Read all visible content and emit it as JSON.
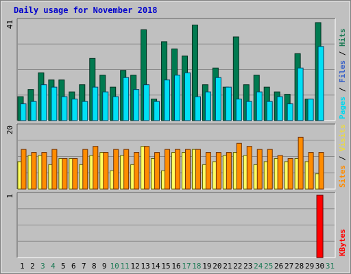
{
  "chart_data": {
    "type": "bar",
    "title": "Daily usage for November 2018",
    "categories": [
      "1",
      "2",
      "3",
      "4",
      "5",
      "6",
      "7",
      "8",
      "9",
      "10",
      "11",
      "12",
      "13",
      "14",
      "15",
      "16",
      "17",
      "18",
      "19",
      "20",
      "21",
      "22",
      "23",
      "24",
      "25",
      "26",
      "27",
      "28",
      "29",
      "30",
      "31"
    ],
    "weekend_days": [
      "3",
      "4",
      "10",
      "11",
      "17",
      "18",
      "24",
      "25",
      "31"
    ],
    "panels": [
      {
        "id": "hits",
        "ymax_label": "41",
        "ymax": 41,
        "side_label": [
          "Pages",
          "Files",
          "Hits"
        ],
        "side_label_colors": [
          "#00d8ef",
          "#3a62c7",
          "#1c7a55"
        ],
        "series": [
          {
            "name": "Hits",
            "color": "#007a50",
            "values": [
              10,
              13,
              20,
              17,
              17,
              12,
              15,
              26,
              19,
              14,
              21,
              19,
              38,
              9,
              33,
              30,
              27,
              40,
              15,
              22,
              14,
              35,
              15,
              19,
              14,
              12,
              11,
              28,
              9,
              41
            ]
          },
          {
            "name": "Files",
            "color": "#2f5fd0",
            "values": [
              7,
              8,
              15,
              14,
              10,
              9,
              8,
              14,
              12,
              10,
              18,
              13,
              15,
              8,
              17,
              19,
              20,
              10,
              12,
              18,
              14,
              9,
              8,
              12,
              8,
              10,
              7,
              22,
              9,
              31
            ]
          },
          {
            "name": "Pages",
            "color": "#00e0f5",
            "values": [
              7,
              8,
              15,
              14,
              10,
              9,
              8,
              14,
              12,
              10,
              18,
              13,
              15,
              8,
              17,
              19,
              20,
              10,
              12,
              18,
              14,
              9,
              8,
              12,
              8,
              10,
              7,
              22,
              9,
              31
            ]
          }
        ]
      },
      {
        "id": "visits",
        "ymax_label": "20",
        "ymax": 20,
        "side_label": [
          "Sites",
          "Visits"
        ],
        "side_label_colors": [
          "#ff8c00",
          "#e8d84a"
        ],
        "series": [
          {
            "name": "Visits",
            "color": "#ffff60",
            "values": [
              9,
              11,
              11,
              8,
              10,
              10,
              8,
              11,
              12,
              6,
              11,
              8,
              14,
              10,
              6,
              12,
              12,
              13,
              8,
              9,
              11,
              12,
              11,
              8,
              9,
              10,
              9,
              10,
              9,
              5
            ]
          },
          {
            "name": "Sites",
            "color": "#ff8c00",
            "values": [
              13,
              12,
              12,
              13,
              10,
              10,
              13,
              14,
              12,
              13,
              13,
              12,
              14,
              12,
              13,
              13,
              13,
              13,
              12,
              12,
              12,
              15,
              14,
              13,
              13,
              11,
              10,
              17,
              12,
              12
            ]
          }
        ]
      },
      {
        "id": "kbytes",
        "ymax_label": "1",
        "ymax": 1,
        "side_label": [
          "KBytes"
        ],
        "side_label_colors": [
          "#ff0000"
        ],
        "series": [
          {
            "name": "KBytes",
            "color": "#ff0000",
            "values": [
              0,
              0,
              0,
              0,
              0,
              0,
              0,
              0,
              0,
              0,
              0,
              0,
              0,
              0,
              0,
              0,
              0,
              0,
              0,
              0,
              0,
              0,
              0,
              0,
              0,
              0,
              0,
              0,
              0,
              1
            ]
          }
        ]
      }
    ]
  }
}
